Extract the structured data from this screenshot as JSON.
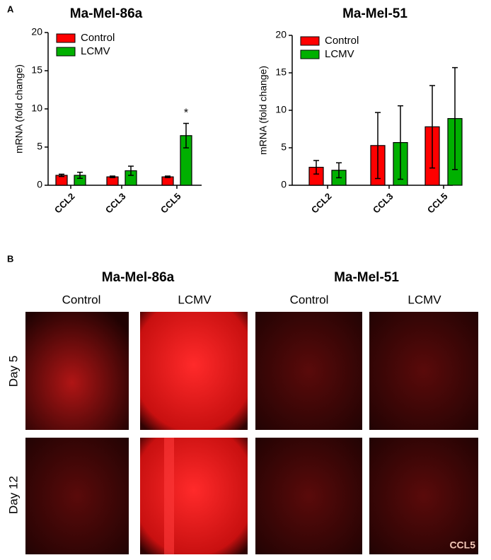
{
  "panel_labels": [
    "A",
    "B"
  ],
  "chart_data": [
    {
      "type": "bar",
      "title": "Ma-Mel-86a",
      "y_label": "mRNA (fold change)",
      "categories": [
        "CCL2",
        "CCL3",
        "CCL5"
      ],
      "series": [
        {
          "name": "Control",
          "color": "#ff0000",
          "values": [
            1.3,
            1.1,
            1.1
          ],
          "errors": [
            0.15,
            0.1,
            0.1
          ]
        },
        {
          "name": "LCMV",
          "color": "#00b000",
          "values": [
            1.3,
            1.9,
            6.5
          ],
          "errors": [
            0.4,
            0.6,
            1.6
          ]
        }
      ],
      "annotation": "*",
      "ylim": [
        0,
        20
      ],
      "yticks": [
        0,
        5,
        10,
        15,
        20
      ],
      "legend": "upper left"
    },
    {
      "type": "bar",
      "title": "Ma-Mel-51",
      "y_label": "mRNA (fold change)",
      "categories": [
        "CCL2",
        "CCL3",
        "CCL5"
      ],
      "series": [
        {
          "name": "Control",
          "color": "#ff0000",
          "values": [
            2.4,
            5.3,
            7.8
          ],
          "errors": [
            0.9,
            4.4,
            5.5
          ]
        },
        {
          "name": "LCMV",
          "color": "#00b000",
          "values": [
            2.0,
            5.7,
            8.9
          ],
          "errors": [
            1.0,
            4.9,
            6.8
          ]
        }
      ],
      "ylim": [
        0,
        20
      ],
      "yticks": [
        0,
        5,
        10,
        15,
        20
      ],
      "legend": "upper left"
    }
  ],
  "panel_b": {
    "titles": [
      "Ma-Mel-86a",
      "Ma-Mel-51"
    ],
    "columns": [
      "Control",
      "LCMV",
      "Control",
      "LCMV"
    ],
    "rows": [
      "Day 5",
      "Day 12"
    ],
    "stain": "CCL5"
  }
}
